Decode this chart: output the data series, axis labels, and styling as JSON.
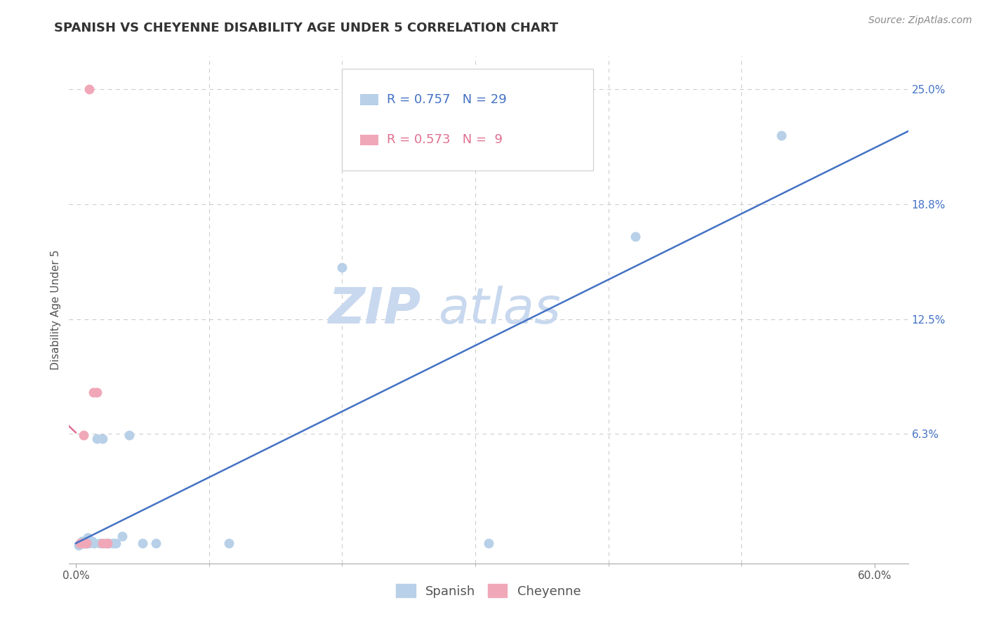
{
  "title": "SPANISH VS CHEYENNE DISABILITY AGE UNDER 5 CORRELATION CHART",
  "source": "Source: ZipAtlas.com",
  "ylabel": "Disability Age Under 5",
  "watermark_zip": "ZIP",
  "watermark_atlas": "atlas",
  "x_min": -0.005,
  "x_max": 0.625,
  "y_min": -0.008,
  "y_max": 0.268,
  "y_ticks": [
    0.0,
    0.0625,
    0.125,
    0.1875,
    0.25
  ],
  "y_tick_labels": [
    "",
    "6.3%",
    "12.5%",
    "18.8%",
    "25.0%"
  ],
  "grid_color": "#cccccc",
  "background_color": "#ffffff",
  "spanish_color": "#b8d0e8",
  "cheyenne_color": "#f0a8b8",
  "spanish_line_color": "#4472c4",
  "cheyenne_line_color": "#e07090",
  "legend_R_spanish": "R = 0.757",
  "legend_N_spanish": "N = 29",
  "legend_R_cheyenne": "R = 0.573",
  "legend_N_cheyenne": "N =  9",
  "spanish_x": [
    0.002,
    0.003,
    0.004,
    0.005,
    0.005,
    0.006,
    0.007,
    0.008,
    0.008,
    0.009,
    0.01,
    0.012,
    0.014,
    0.016,
    0.018,
    0.02,
    0.022,
    0.025,
    0.028,
    0.03,
    0.035,
    0.04,
    0.05,
    0.06,
    0.115,
    0.2,
    0.31,
    0.42,
    0.53
  ],
  "spanish_y": [
    0.002,
    0.003,
    0.003,
    0.003,
    0.004,
    0.003,
    0.003,
    0.003,
    0.003,
    0.006,
    0.003,
    0.004,
    0.003,
    0.06,
    0.003,
    0.06,
    0.003,
    0.003,
    0.003,
    0.003,
    0.007,
    0.062,
    0.003,
    0.003,
    0.003,
    0.153,
    0.003,
    0.17,
    0.225
  ],
  "cheyenne_x": [
    0.003,
    0.005,
    0.006,
    0.008,
    0.01,
    0.013,
    0.016,
    0.02,
    0.024
  ],
  "cheyenne_y": [
    0.003,
    0.003,
    0.062,
    0.003,
    0.25,
    0.085,
    0.085,
    0.003,
    0.003
  ],
  "marker_size": 100,
  "title_fontsize": 13,
  "tick_label_fontsize": 11,
  "ylabel_fontsize": 11,
  "legend_fontsize": 13,
  "source_fontsize": 10,
  "watermark_fontsize_zip": 52,
  "watermark_fontsize_atlas": 52,
  "watermark_color": "#c8d8ee",
  "y_tick_color": "#4472c4",
  "x_tick_color": "#555555"
}
